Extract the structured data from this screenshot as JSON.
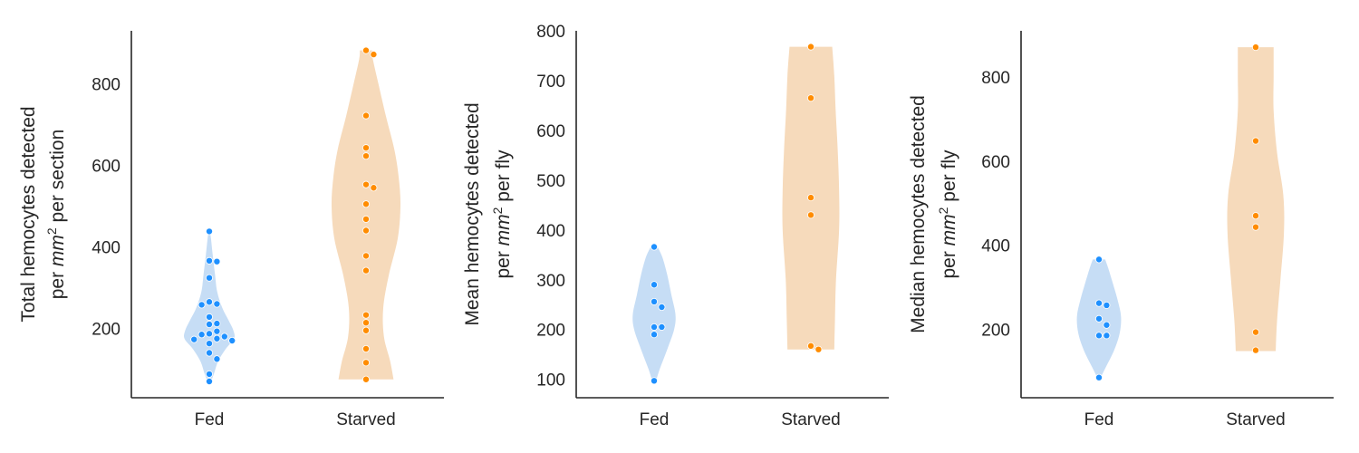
{
  "colors": {
    "fed_point": "#1e90ff",
    "fed_violin": "#c6ddf5",
    "starved_point": "#ff8c00",
    "starved_violin": "#f6dabb",
    "axis": "#262626",
    "point_edge": "#ffffff"
  },
  "chart_data": [
    {
      "type": "violin",
      "ylabel_line1": "Total hemocytes detected",
      "ylabel_line2_prefix": "per ",
      "ylabel_line2_math": "mm",
      "ylabel_line2_sup": "2",
      "ylabel_line2_suffix": " per section",
      "ylim": [
        30,
        930
      ],
      "yticks": [
        "200",
        "400",
        "600",
        "800"
      ],
      "categories": [
        "Fed",
        "Starved"
      ],
      "grid": false,
      "series": [
        {
          "category": "Fed",
          "values": [
            438,
            366,
            364,
            324,
            265,
            260,
            258,
            228,
            212,
            210,
            193,
            187,
            185,
            180,
            175,
            173,
            170,
            163,
            140,
            125,
            88,
            70
          ],
          "violin_profile": [
            [
              70,
              0.05
            ],
            [
              90,
              0.14
            ],
            [
              120,
              0.26
            ],
            [
              150,
              0.48
            ],
            [
              175,
              0.72
            ],
            [
              195,
              0.7
            ],
            [
              220,
              0.56
            ],
            [
              250,
              0.38
            ],
            [
              290,
              0.23
            ],
            [
              330,
              0.17
            ],
            [
              380,
              0.1
            ],
            [
              420,
              0.05
            ],
            [
              438,
              0.02
            ]
          ]
        },
        {
          "category": "Starved",
          "values": [
            882,
            872,
            722,
            643,
            623,
            553,
            545,
            505,
            468,
            440,
            378,
            342,
            233,
            214,
            195,
            150,
            116,
            75
          ],
          "violin_profile": [
            [
              75,
              0.8
            ],
            [
              120,
              0.7
            ],
            [
              180,
              0.52
            ],
            [
              250,
              0.5
            ],
            [
              330,
              0.66
            ],
            [
              420,
              0.92
            ],
            [
              500,
              1.0
            ],
            [
              570,
              0.95
            ],
            [
              640,
              0.82
            ],
            [
              720,
              0.58
            ],
            [
              800,
              0.36
            ],
            [
              860,
              0.2
            ],
            [
              882,
              0.18
            ]
          ]
        }
      ]
    },
    {
      "type": "violin",
      "ylabel_line1": "Mean hemocytes detected",
      "ylabel_line2_prefix": "per ",
      "ylabel_line2_math": "mm",
      "ylabel_line2_sup": "2",
      "ylabel_line2_suffix": " per fly",
      "ylim": [
        63,
        800
      ],
      "yticks": [
        "100",
        "200",
        "300",
        "400",
        "500",
        "600",
        "700",
        "800"
      ],
      "categories": [
        "Fed",
        "Starved"
      ],
      "grid": false,
      "series": [
        {
          "category": "Fed",
          "values": [
            366,
            290,
            256,
            245,
            205,
            205,
            190,
            97
          ],
          "violin_profile": [
            [
              95,
              0.05
            ],
            [
              120,
              0.16
            ],
            [
              160,
              0.38
            ],
            [
              200,
              0.58
            ],
            [
              230,
              0.62
            ],
            [
              270,
              0.5
            ],
            [
              310,
              0.38
            ],
            [
              345,
              0.24
            ],
            [
              366,
              0.1
            ]
          ]
        },
        {
          "category": "Starved",
          "values": [
            768,
            665,
            465,
            430,
            167,
            160
          ],
          "violin_profile": [
            [
              160,
              0.68
            ],
            [
              220,
              0.7
            ],
            [
              300,
              0.73
            ],
            [
              400,
              0.82
            ],
            [
              480,
              0.82
            ],
            [
              560,
              0.78
            ],
            [
              640,
              0.72
            ],
            [
              710,
              0.68
            ],
            [
              768,
              0.62
            ]
          ]
        }
      ]
    },
    {
      "type": "violin",
      "ylabel_line1": "Median hemocytes detected",
      "ylabel_line2_prefix": "per ",
      "ylabel_line2_math": "mm",
      "ylabel_line2_sup": "2",
      "ylabel_line2_suffix": " per fly",
      "ylim": [
        37,
        910
      ],
      "yticks": [
        "200",
        "400",
        "600",
        "800"
      ],
      "categories": [
        "Fed",
        "Starved"
      ],
      "grid": false,
      "series": [
        {
          "category": "Fed",
          "values": [
            366,
            262,
            257,
            225,
            210,
            185,
            185,
            85
          ],
          "violin_profile": [
            [
              85,
              0.05
            ],
            [
              110,
              0.2
            ],
            [
              150,
              0.44
            ],
            [
              190,
              0.6
            ],
            [
              230,
              0.64
            ],
            [
              270,
              0.54
            ],
            [
              310,
              0.4
            ],
            [
              345,
              0.27
            ],
            [
              366,
              0.18
            ]
          ]
        },
        {
          "category": "Starved",
          "values": [
            871,
            648,
            470,
            443,
            193,
            150
          ],
          "violin_profile": [
            [
              148,
              0.58
            ],
            [
              220,
              0.62
            ],
            [
              320,
              0.72
            ],
            [
              430,
              0.82
            ],
            [
              520,
              0.8
            ],
            [
              620,
              0.62
            ],
            [
              720,
              0.52
            ],
            [
              800,
              0.52
            ],
            [
              871,
              0.52
            ]
          ]
        }
      ]
    }
  ]
}
